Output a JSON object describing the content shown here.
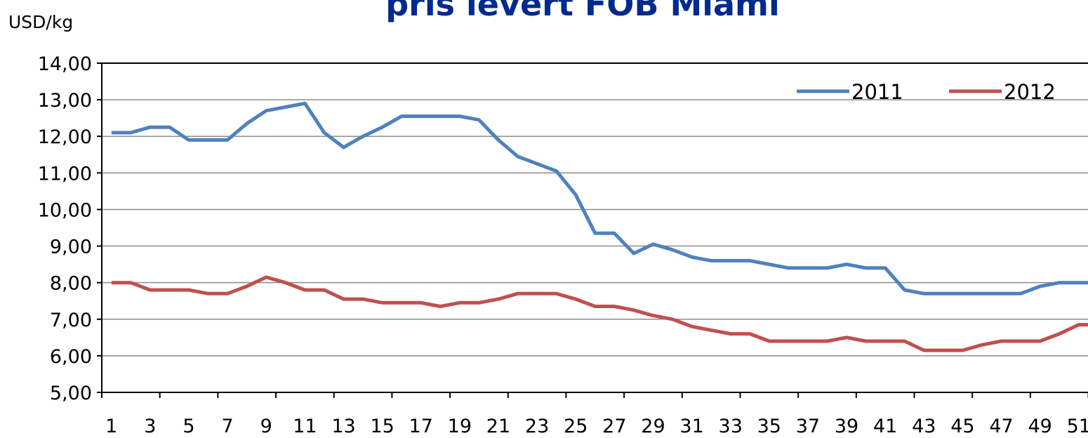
{
  "chart_data": {
    "type": "line",
    "title": "pris levert FOB Miami",
    "y_label": "USD/kg",
    "categories": [
      "1",
      null,
      "3",
      null,
      "5",
      null,
      "7",
      null,
      "9",
      null,
      "11",
      null,
      "13",
      null,
      "15",
      null,
      "17",
      null,
      "19",
      null,
      "21",
      null,
      "23",
      null,
      "25",
      null,
      "27",
      null,
      "29",
      null,
      "31",
      null,
      "33",
      null,
      "35",
      null,
      "37",
      null,
      "39",
      null,
      "41",
      null,
      "43",
      null,
      "45",
      null,
      "47",
      null,
      "49",
      null,
      "51",
      null
    ],
    "series": [
      {
        "name": "2011",
        "color": "#4f81bd",
        "values": [
          12.1,
          12.1,
          12.25,
          12.25,
          11.9,
          11.9,
          11.9,
          12.35,
          12.7,
          12.8,
          12.9,
          12.1,
          11.7,
          12.0,
          12.25,
          12.55,
          12.55,
          12.55,
          12.55,
          12.45,
          11.9,
          11.45,
          11.25,
          11.05,
          10.4,
          9.35,
          9.35,
          8.8,
          9.05,
          8.9,
          8.7,
          8.6,
          8.6,
          8.6,
          8.5,
          8.4,
          8.4,
          8.4,
          8.5,
          8.4,
          8.4,
          7.8,
          7.7,
          7.7,
          7.7,
          7.7,
          7.7,
          7.7,
          7.9,
          8.0,
          8.0,
          8.0
        ]
      },
      {
        "name": "2012",
        "color": "#c0504d",
        "values": [
          8.0,
          8.0,
          7.8,
          7.8,
          7.8,
          7.7,
          7.7,
          7.9,
          8.15,
          8.0,
          7.8,
          7.8,
          7.55,
          7.55,
          7.45,
          7.45,
          7.45,
          7.35,
          7.45,
          7.45,
          7.55,
          7.7,
          7.7,
          7.7,
          7.55,
          7.35,
          7.35,
          7.25,
          7.1,
          7.0,
          6.8,
          6.7,
          6.6,
          6.6,
          6.4,
          6.4,
          6.4,
          6.4,
          6.5,
          6.4,
          6.4,
          6.4,
          6.15,
          6.15,
          6.15,
          6.3,
          6.4,
          6.4,
          6.4,
          6.6,
          6.85,
          6.85
        ]
      }
    ],
    "ylim": [
      5,
      14
    ],
    "yticks": [
      {
        "value": 5,
        "label": "5,00"
      },
      {
        "value": 6,
        "label": "6,00"
      },
      {
        "value": 7,
        "label": "7,00"
      },
      {
        "value": 8,
        "label": "8,00"
      },
      {
        "value": 9,
        "label": "9,00"
      },
      {
        "value": 10,
        "label": "10,00"
      },
      {
        "value": 11,
        "label": "11,00"
      },
      {
        "value": 12,
        "label": "12,00"
      },
      {
        "value": 13,
        "label": "13,00"
      },
      {
        "value": 14,
        "label": "14,00"
      }
    ],
    "grid": true,
    "legend": "top-right"
  }
}
